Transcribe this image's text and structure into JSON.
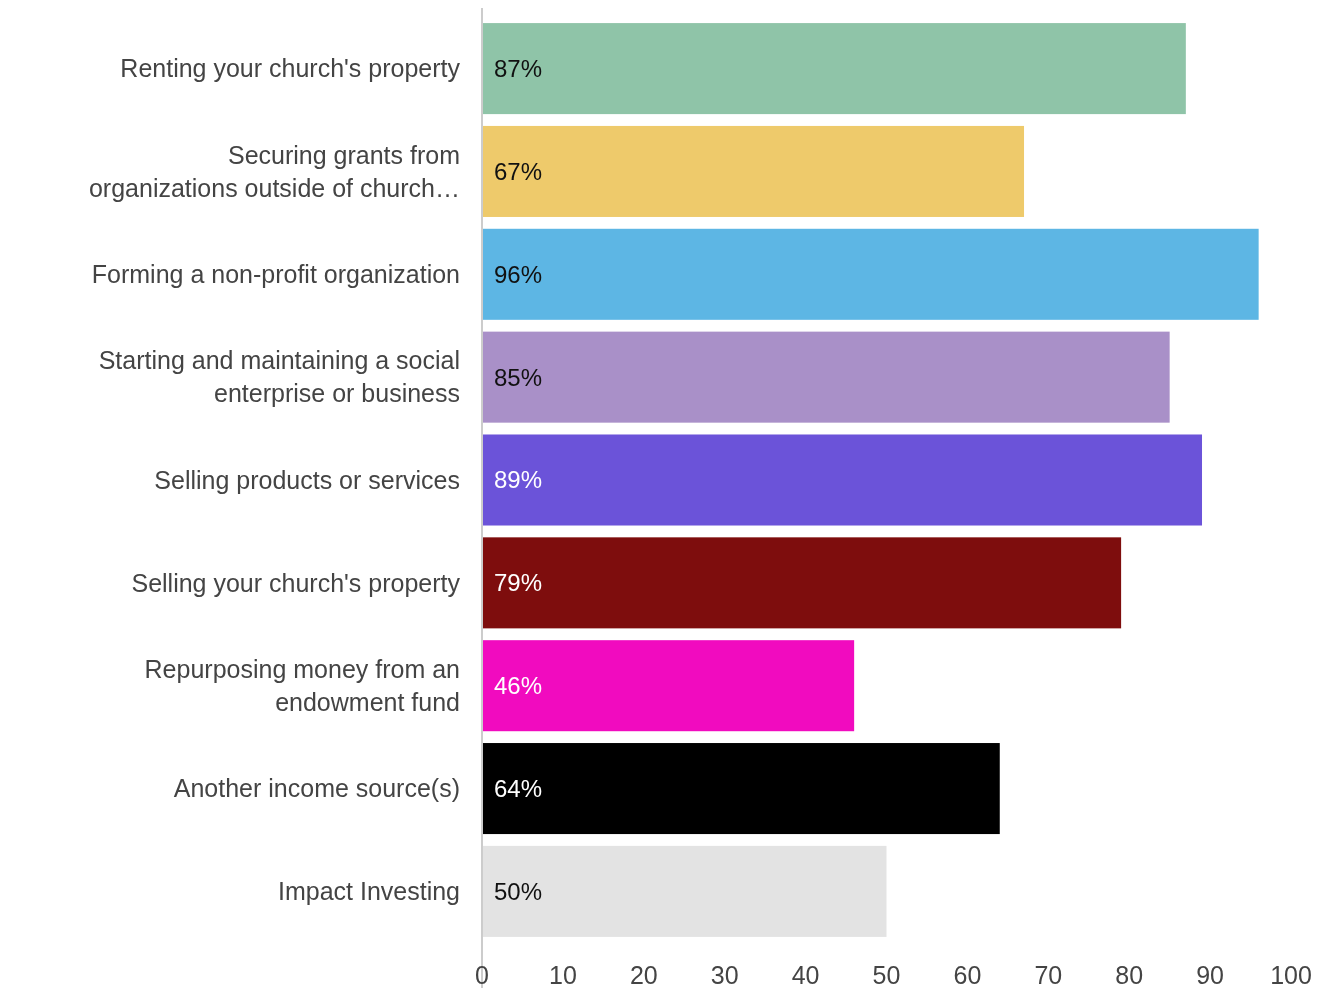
{
  "chart_data": {
    "type": "bar",
    "orientation": "horizontal",
    "categories": [
      "Renting your church's property",
      "Securing grants from organizations outside of church…",
      "Forming a non-profit organization",
      "Starting and maintaining a social enterprise or business",
      "Selling products or services",
      "Selling your church's property",
      "Repurposing money from an endowment fund",
      "Another income source(s)",
      "Impact Investing"
    ],
    "values": [
      87,
      67,
      96,
      85,
      89,
      79,
      46,
      64,
      50
    ],
    "colors": [
      "#8fc4a8",
      "#eeca6b",
      "#5db6e4",
      "#a990c8",
      "#6b53d9",
      "#7e0d0d",
      "#f10bbf",
      "#000000",
      "#e3e3e3"
    ],
    "value_labels": [
      "87%",
      "67%",
      "96%",
      "85%",
      "89%",
      "79%",
      "46%",
      "64%",
      "50%"
    ],
    "xlim": [
      0,
      100
    ],
    "xticks": [
      0,
      10,
      20,
      30,
      40,
      50,
      60,
      70,
      80,
      90,
      100
    ],
    "grid": false
  }
}
